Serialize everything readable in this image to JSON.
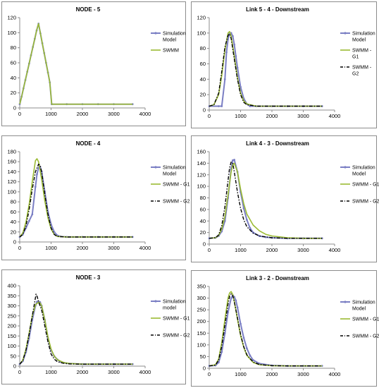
{
  "figure": {
    "colors": {
      "simulation": "#7b7fc4",
      "swmm_g1": "#9bbb33",
      "swmm_g2": "#000000",
      "axis": "#8c8c8c"
    }
  },
  "chart_data": [
    {
      "type": "line",
      "title": "NODE - 5",
      "xlim": [
        0,
        4000
      ],
      "ylim": [
        0,
        120
      ],
      "xticks": [
        0,
        1000,
        2000,
        3000,
        4000
      ],
      "yticks": [
        0,
        20,
        40,
        60,
        80,
        100,
        120
      ],
      "legend_position": "right",
      "series": [
        {
          "name": "Simulation Model",
          "legend_lines": [
            "Simulation",
            "Model"
          ],
          "style": "sim",
          "x": [
            0,
            60,
            120,
            180,
            240,
            300,
            360,
            420,
            480,
            540,
            600,
            660,
            720,
            780,
            840,
            900,
            960,
            1020,
            1500,
            2000,
            2500,
            3000,
            3600
          ],
          "y": [
            5,
            15,
            26,
            37,
            48,
            59,
            70,
            81,
            92,
            103,
            112,
            99,
            86,
            73,
            60,
            47,
            34,
            5,
            5,
            5,
            5,
            5,
            5
          ]
        },
        {
          "name": "SWMM",
          "legend_lines": [
            "SWMM"
          ],
          "style": "g1",
          "x": [
            0,
            60,
            120,
            180,
            240,
            300,
            360,
            420,
            480,
            540,
            600,
            660,
            720,
            780,
            840,
            900,
            960,
            1020,
            1500,
            2000,
            2500,
            3000,
            3600
          ],
          "y": [
            5,
            15,
            26,
            37,
            48,
            59,
            70,
            81,
            92,
            103,
            112,
            99,
            86,
            73,
            60,
            47,
            34,
            5,
            5,
            5,
            5,
            5,
            5
          ]
        }
      ]
    },
    {
      "type": "line",
      "title": "Link 5 - 4 - Downstream",
      "xlim": [
        0,
        4000
      ],
      "ylim": [
        0,
        120
      ],
      "xticks": [
        0,
        1000,
        2000,
        3000,
        4000
      ],
      "yticks": [
        0,
        20,
        40,
        60,
        80,
        100,
        120
      ],
      "legend_position": "right",
      "series": [
        {
          "name": "Simulation Model",
          "legend_lines": [
            "Simulation",
            "Model"
          ],
          "style": "sim",
          "x": [
            0,
            300,
            400,
            500,
            550,
            600,
            650,
            700,
            750,
            800,
            850,
            900,
            1000,
            1100,
            1200,
            1300,
            1500,
            2000,
            2500,
            3000,
            3600
          ],
          "y": [
            5,
            5,
            5,
            40,
            75,
            92,
            99,
            100,
            96,
            85,
            70,
            55,
            30,
            15,
            8,
            5,
            5,
            5,
            5,
            5,
            5
          ]
        },
        {
          "name": "SWMM - G1",
          "legend_lines": [
            "SWMM -",
            "G1"
          ],
          "style": "g1",
          "x": [
            0,
            150,
            300,
            400,
            500,
            600,
            650,
            700,
            800,
            900,
            1000,
            1100,
            1200,
            1500,
            2000,
            3000,
            3600
          ],
          "y": [
            5,
            7,
            20,
            45,
            78,
            100,
            102,
            96,
            70,
            42,
            22,
            12,
            8,
            5,
            5,
            5,
            5
          ]
        },
        {
          "name": "SWMM - G2",
          "legend_lines": [
            "SWMM -",
            "G2"
          ],
          "style": "g2",
          "x": [
            0,
            150,
            300,
            400,
            500,
            600,
            650,
            700,
            800,
            900,
            1000,
            1100,
            1200,
            1500,
            2000,
            3000,
            3600
          ],
          "y": [
            5,
            7,
            22,
            50,
            82,
            97,
            99,
            93,
            66,
            40,
            20,
            10,
            7,
            5,
            5,
            5,
            5
          ]
        }
      ]
    },
    {
      "type": "line",
      "title": "NODE - 4",
      "xlim": [
        0,
        4000
      ],
      "ylim": [
        0,
        180
      ],
      "xticks": [
        0,
        1000,
        2000,
        3000,
        4000
      ],
      "yticks": [
        0,
        20,
        40,
        60,
        80,
        100,
        120,
        140,
        160,
        180
      ],
      "legend_position": "right",
      "series": [
        {
          "name": "Simulation Model",
          "legend_lines": [
            "Simulation",
            "Model"
          ],
          "style": "sim",
          "x": [
            0,
            100,
            200,
            300,
            400,
            500,
            550,
            600,
            650,
            700,
            800,
            900,
            1000,
            1100,
            1200,
            1300,
            1500,
            2000,
            2500,
            3000,
            3600
          ],
          "y": [
            10,
            15,
            28,
            42,
            55,
            110,
            135,
            148,
            150,
            140,
            100,
            60,
            35,
            20,
            13,
            11,
            10,
            10,
            10,
            10,
            10
          ]
        },
        {
          "name": "SWMM - G1",
          "legend_lines": [
            "SWMM - G1"
          ],
          "style": "g1",
          "x": [
            0,
            100,
            200,
            300,
            400,
            500,
            550,
            600,
            700,
            800,
            900,
            1000,
            1100,
            1200,
            1500,
            2000,
            3000,
            3600
          ],
          "y": [
            10,
            18,
            40,
            75,
            120,
            162,
            166,
            160,
            125,
            82,
            48,
            26,
            15,
            11,
            10,
            10,
            10,
            10
          ]
        },
        {
          "name": "SWMM - G2",
          "legend_lines": [
            "SWMM - G2"
          ],
          "style": "g2",
          "x": [
            0,
            100,
            200,
            300,
            400,
            500,
            600,
            650,
            700,
            800,
            900,
            1000,
            1100,
            1200,
            1500,
            2000,
            3000,
            3600
          ],
          "y": [
            10,
            15,
            32,
            65,
            105,
            140,
            155,
            153,
            140,
            95,
            55,
            28,
            15,
            11,
            10,
            10,
            10,
            10
          ]
        }
      ]
    },
    {
      "type": "line",
      "title": "Link 4 - 3 - Downstream",
      "xlim": [
        0,
        4000
      ],
      "ylim": [
        0,
        160
      ],
      "xticks": [
        0,
        1000,
        2000,
        3000,
        4000
      ],
      "yticks": [
        0,
        20,
        40,
        60,
        80,
        100,
        120,
        140,
        160
      ],
      "legend_position": "right",
      "series": [
        {
          "name": "Simulation Model",
          "legend_lines": [
            "Simulation",
            "Model"
          ],
          "style": "sim",
          "x": [
            0,
            200,
            300,
            400,
            500,
            600,
            700,
            750,
            800,
            900,
            1000,
            1100,
            1200,
            1300,
            1400,
            1600,
            1800,
            2000,
            2500,
            3000,
            3600
          ],
          "y": [
            10,
            11,
            14,
            22,
            40,
            80,
            130,
            145,
            146,
            125,
            90,
            62,
            42,
            28,
            20,
            14,
            12,
            11,
            10,
            10,
            10
          ]
        },
        {
          "name": "SWMM - G1",
          "legend_lines": [
            "SWMM - G1"
          ],
          "style": "g1",
          "x": [
            0,
            200,
            300,
            400,
            500,
            600,
            700,
            750,
            800,
            900,
            1000,
            1100,
            1200,
            1400,
            1600,
            1800,
            2000,
            2500,
            3000,
            3600
          ],
          "y": [
            10,
            11,
            15,
            26,
            48,
            85,
            125,
            137,
            140,
            125,
            95,
            70,
            52,
            33,
            23,
            17,
            14,
            11,
            10,
            10
          ]
        },
        {
          "name": "SWMM - G2",
          "legend_lines": [
            "SWMM - G2"
          ],
          "style": "g2",
          "x": [
            0,
            200,
            300,
            400,
            500,
            600,
            650,
            700,
            750,
            800,
            900,
            1000,
            1100,
            1200,
            1400,
            1600,
            2000,
            2500,
            3000,
            3600
          ],
          "y": [
            10,
            11,
            16,
            32,
            65,
            110,
            132,
            142,
            140,
            125,
            90,
            62,
            42,
            30,
            19,
            14,
            11,
            10,
            10,
            10
          ]
        }
      ]
    },
    {
      "type": "line",
      "title": "NODE - 3",
      "xlim": [
        0,
        4000
      ],
      "ylim": [
        0,
        400
      ],
      "xticks": [
        0,
        1000,
        2000,
        3000,
        4000
      ],
      "yticks": [
        0,
        50,
        100,
        150,
        200,
        250,
        300,
        350,
        400
      ],
      "legend_position": "right",
      "series": [
        {
          "name": "Simulation model",
          "legend_lines": [
            "Simulation",
            "model"
          ],
          "style": "sim",
          "x": [
            0,
            100,
            200,
            300,
            400,
            500,
            550,
            600,
            650,
            700,
            800,
            900,
            1000,
            1100,
            1200,
            1300,
            1500,
            2000,
            2500,
            3000,
            3600
          ],
          "y": [
            10,
            25,
            70,
            140,
            230,
            300,
            320,
            322,
            318,
            300,
            230,
            140,
            80,
            50,
            33,
            22,
            14,
            10,
            10,
            10,
            10
          ]
        },
        {
          "name": "SWMM - G1",
          "legend_lines": [
            "SWMM - G1"
          ],
          "style": "g1",
          "x": [
            0,
            100,
            200,
            300,
            400,
            500,
            600,
            650,
            700,
            800,
            900,
            1000,
            1100,
            1200,
            1400,
            1600,
            2000,
            2500,
            3000,
            3600
          ],
          "y": [
            10,
            30,
            85,
            165,
            250,
            305,
            318,
            314,
            300,
            230,
            145,
            85,
            50,
            32,
            18,
            13,
            10,
            10,
            10,
            10
          ]
        },
        {
          "name": "SWMM - G2",
          "legend_lines": [
            "SWMM - G2"
          ],
          "style": "g2",
          "x": [
            0,
            100,
            200,
            300,
            400,
            500,
            520,
            560,
            600,
            700,
            800,
            900,
            1000,
            1100,
            1200,
            1400,
            1600,
            2000,
            2500,
            3000,
            3600
          ],
          "y": [
            10,
            28,
            80,
            160,
            250,
            340,
            358,
            345,
            320,
            280,
            200,
            120,
            60,
            35,
            22,
            14,
            11,
            10,
            10,
            10,
            10
          ]
        }
      ]
    },
    {
      "type": "line",
      "title": "Link 3 - 2 - Downstream",
      "xlim": [
        0,
        4000
      ],
      "ylim": [
        0,
        350
      ],
      "xticks": [
        0,
        1000,
        2000,
        3000,
        4000
      ],
      "yticks": [
        0,
        50,
        100,
        150,
        200,
        250,
        300,
        350
      ],
      "legend_position": "right",
      "series": [
        {
          "name": "Simulation Model",
          "legend_lines": [
            "Simulation",
            "Model"
          ],
          "style": "sim",
          "x": [
            0,
            200,
            300,
            400,
            500,
            600,
            700,
            750,
            800,
            850,
            900,
            1000,
            1100,
            1200,
            1300,
            1400,
            1600,
            2000,
            2500,
            3000,
            3600
          ],
          "y": [
            10,
            12,
            25,
            70,
            150,
            240,
            300,
            312,
            305,
            290,
            260,
            190,
            130,
            85,
            55,
            35,
            20,
            12,
            10,
            10,
            10
          ]
        },
        {
          "name": "SWMM - G1",
          "legend_lines": [
            "SWMM - G1"
          ],
          "style": "g1",
          "x": [
            0,
            200,
            300,
            400,
            500,
            600,
            650,
            700,
            750,
            800,
            900,
            1000,
            1100,
            1200,
            1400,
            1600,
            2000,
            2500,
            3000,
            3600
          ],
          "y": [
            10,
            15,
            40,
            110,
            210,
            300,
            322,
            328,
            315,
            285,
            210,
            140,
            90,
            55,
            25,
            15,
            11,
            10,
            10,
            10
          ]
        },
        {
          "name": "SWMM - G2",
          "legend_lines": [
            "SWMM - G2"
          ],
          "style": "g2",
          "x": [
            0,
            200,
            300,
            400,
            500,
            600,
            650,
            700,
            750,
            800,
            900,
            1000,
            1100,
            1200,
            1400,
            1600,
            2000,
            2500,
            3000,
            3600
          ],
          "y": [
            10,
            14,
            35,
            95,
            185,
            275,
            308,
            318,
            310,
            285,
            215,
            145,
            92,
            58,
            27,
            16,
            11,
            10,
            10,
            10
          ]
        }
      ]
    }
  ]
}
